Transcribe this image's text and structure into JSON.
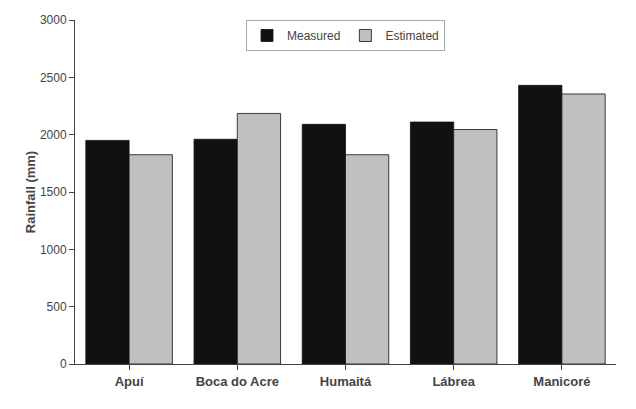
{
  "chart_data": {
    "type": "bar",
    "categories": [
      "Apuí",
      "Boca do Acre",
      "Humaitá",
      "Lábrea",
      "Manicoré"
    ],
    "series": [
      {
        "name": "Measured",
        "color": "#111111",
        "values": [
          1950,
          1960,
          2090,
          2110,
          2430
        ]
      },
      {
        "name": "Estimated",
        "color": "#c0c0c0",
        "values": [
          1825,
          2185,
          1825,
          2045,
          2355
        ]
      }
    ],
    "ylabel": "Rainfall (mm)",
    "ylim": [
      0,
      3000
    ],
    "yticks": [
      0,
      500,
      1000,
      1500,
      2000,
      2500,
      3000
    ],
    "grid": false,
    "legend": "upper center"
  }
}
